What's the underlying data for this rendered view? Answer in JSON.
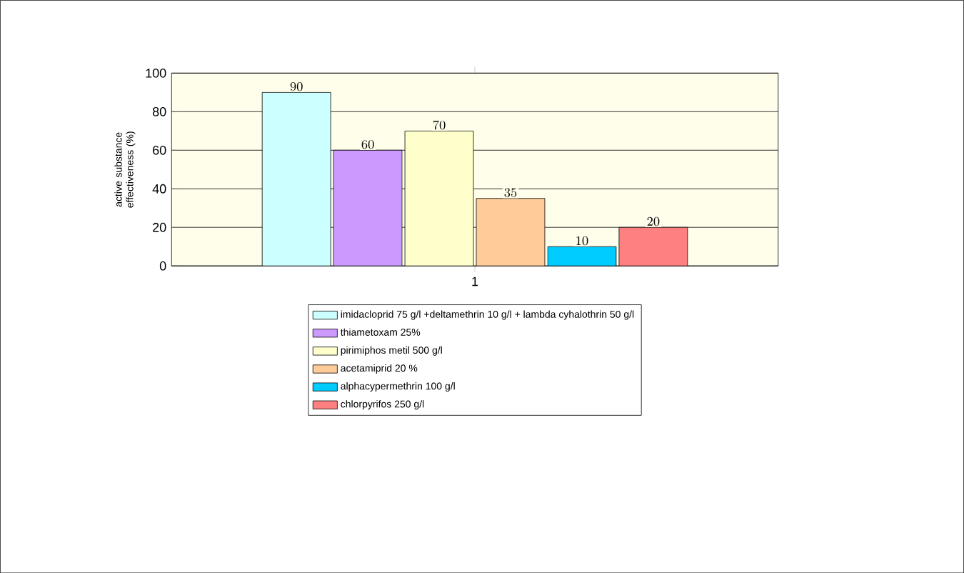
{
  "chart_data": {
    "type": "bar",
    "ylabel": "active substance effectiveness (%)",
    "categories": [
      "1"
    ],
    "series": [
      {
        "name": "imidacloprid 75 g/l +deltamethrin 10 g/l + lambda cyhalothrin 50 g/l",
        "color": "#ccffff",
        "values": [
          90
        ]
      },
      {
        "name": "thiametoxam 25%",
        "color": "#cc99ff",
        "values": [
          60
        ]
      },
      {
        "name": "pirimiphos metil 500 g/l",
        "color": "#ffffcc",
        "values": [
          70
        ]
      },
      {
        "name": "acetamiprid 20 %",
        "color": "#ffcc99",
        "values": [
          35
        ]
      },
      {
        "name": "alphacypermethrin 100 g/l",
        "color": "#00ccff",
        "values": [
          10
        ]
      },
      {
        "name": "chlorpyrifos 250 g/l",
        "color": "#ff8080",
        "values": [
          20
        ]
      }
    ],
    "ylim": [
      0,
      100
    ],
    "yticks": [
      0,
      20,
      40,
      60,
      80,
      100
    ],
    "grid": "y",
    "legend": "bottom",
    "data_labels": true
  }
}
